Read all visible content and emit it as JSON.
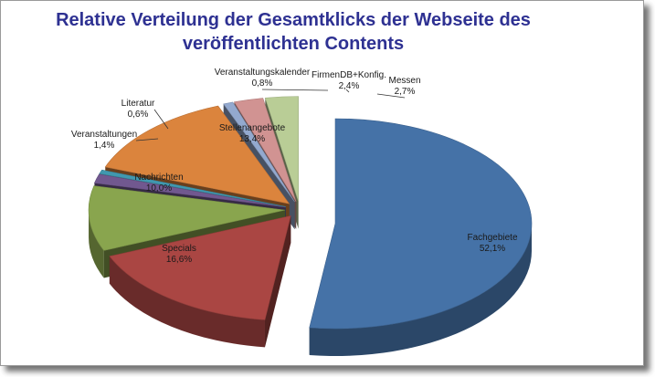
{
  "chart_data": {
    "type": "pie",
    "title_lines": [
      "Relative Verteilung der Gesamtklicks der Webseite des",
      "veröffentlichten Contents"
    ],
    "slices": [
      {
        "label": "Fachgebiete",
        "pct_label": "52,1%",
        "value": 52.1,
        "color": "#4572a7"
      },
      {
        "label": "Specials",
        "pct_label": "16,6%",
        "value": 16.6,
        "color": "#aa4643"
      },
      {
        "label": "Nachrichten",
        "pct_label": "10,0%",
        "value": 10.0,
        "color": "#89a54e"
      },
      {
        "label": "Veranstaltungen",
        "pct_label": "1,4%",
        "value": 1.4,
        "color": "#71588f"
      },
      {
        "label": "Literatur",
        "pct_label": "0,6%",
        "value": 0.6,
        "color": "#4198af"
      },
      {
        "label": "Stellenangebote",
        "pct_label": "13,4%",
        "value": 13.4,
        "color": "#db843d"
      },
      {
        "label": "Veranstaltungskalender",
        "pct_label": "0,8%",
        "value": 0.8,
        "color": "#93a9cf"
      },
      {
        "label": "FirmenDB+Konfig.",
        "pct_label": "2,4%",
        "value": 2.4,
        "color": "#d19392"
      },
      {
        "label": "Messen",
        "pct_label": "2,7%",
        "value": 2.7,
        "color": "#b9cd96"
      }
    ],
    "exploded": true,
    "depth": "3d"
  }
}
